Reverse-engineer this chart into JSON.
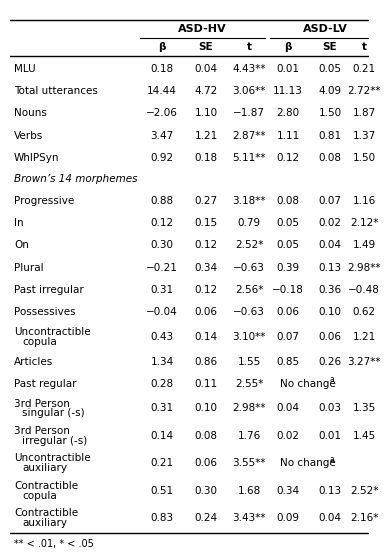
{
  "title_group1": "ASD-HV",
  "title_group2": "ASD-LV",
  "footnote": "** < .01, * < .05",
  "rows": [
    {
      "label": "MLU",
      "hv": [
        "0.18",
        "0.04",
        "4.43**"
      ],
      "lv": [
        "0.01",
        "0.05",
        "0.21"
      ],
      "two_line": false,
      "section_header": false
    },
    {
      "label": "Total utterances",
      "hv": [
        "14.44",
        "4.72",
        "3.06**"
      ],
      "lv": [
        "11.13",
        "4.09",
        "2.72**"
      ],
      "two_line": false,
      "section_header": false
    },
    {
      "label": "Nouns",
      "hv": [
        "−2.06",
        "1.10",
        "−1.87"
      ],
      "lv": [
        "2.80",
        "1.50",
        "1.87"
      ],
      "two_line": false,
      "section_header": false
    },
    {
      "label": "Verbs",
      "hv": [
        "3.47",
        "1.21",
        "2.87**"
      ],
      "lv": [
        "1.11",
        "0.81",
        "1.37"
      ],
      "two_line": false,
      "section_header": false
    },
    {
      "label": "WhIPSyn",
      "hv": [
        "0.92",
        "0.18",
        "5.11**"
      ],
      "lv": [
        "0.12",
        "0.08",
        "1.50"
      ],
      "two_line": false,
      "section_header": false
    },
    {
      "label": "Brown’s 14 morphemes",
      "hv": null,
      "lv": null,
      "two_line": false,
      "section_header": true
    },
    {
      "label": "Progressive",
      "hv": [
        "0.88",
        "0.27",
        "3.18**"
      ],
      "lv": [
        "0.08",
        "0.07",
        "1.16"
      ],
      "two_line": false,
      "section_header": false
    },
    {
      "label": "In",
      "hv": [
        "0.12",
        "0.15",
        "0.79"
      ],
      "lv": [
        "0.05",
        "0.02",
        "2.12*"
      ],
      "two_line": false,
      "section_header": false
    },
    {
      "label": "On",
      "hv": [
        "0.30",
        "0.12",
        "2.52*"
      ],
      "lv": [
        "0.05",
        "0.04",
        "1.49"
      ],
      "two_line": false,
      "section_header": false
    },
    {
      "label": "Plural",
      "hv": [
        "−0.21",
        "0.34",
        "−0.63"
      ],
      "lv": [
        "0.39",
        "0.13",
        "2.98**"
      ],
      "two_line": false,
      "section_header": false
    },
    {
      "label": "Past irregular",
      "hv": [
        "0.31",
        "0.12",
        "2.56*"
      ],
      "lv": [
        "−0.18",
        "0.36",
        "−0.48"
      ],
      "two_line": false,
      "section_header": false
    },
    {
      "label": "Possessives",
      "hv": [
        "−0.04",
        "0.06",
        "−0.63"
      ],
      "lv": [
        "0.06",
        "0.10",
        "0.62"
      ],
      "two_line": false,
      "section_header": false
    },
    {
      "label": "Uncontractible",
      "label2": "copula",
      "hv": [
        "0.43",
        "0.14",
        "3.10**"
      ],
      "lv": [
        "0.07",
        "0.06",
        "1.21"
      ],
      "two_line": true,
      "section_header": false
    },
    {
      "label": "Articles",
      "hv": [
        "1.34",
        "0.86",
        "1.55"
      ],
      "lv": [
        "0.85",
        "0.26",
        "3.27**"
      ],
      "two_line": false,
      "section_header": false
    },
    {
      "label": "Past regular",
      "hv": [
        "0.28",
        "0.11",
        "2.55*"
      ],
      "lv": null,
      "lv_nochange": true,
      "two_line": false,
      "section_header": false
    },
    {
      "label": "3rd Person",
      "label2": "singular (-s)",
      "hv": [
        "0.31",
        "0.10",
        "2.98**"
      ],
      "lv": [
        "0.04",
        "0.03",
        "1.35"
      ],
      "two_line": true,
      "section_header": false
    },
    {
      "label": "3rd Person",
      "label2": "irregular (-s)",
      "hv": [
        "0.14",
        "0.08",
        "1.76"
      ],
      "lv": [
        "0.02",
        "0.01",
        "1.45"
      ],
      "two_line": true,
      "section_header": false
    },
    {
      "label": "Uncontractible",
      "label2": "auxiliary",
      "hv": [
        "0.21",
        "0.06",
        "3.55**"
      ],
      "lv": null,
      "lv_nochange": true,
      "two_line": true,
      "section_header": false
    },
    {
      "label": "Contractible",
      "label2": "copula",
      "hv": [
        "0.51",
        "0.30",
        "1.68"
      ],
      "lv": [
        "0.34",
        "0.13",
        "2.52*"
      ],
      "two_line": true,
      "section_header": false
    },
    {
      "label": "Contractible",
      "label2": "auxiliary",
      "hv": [
        "0.83",
        "0.24",
        "3.43**"
      ],
      "lv": [
        "0.09",
        "0.04",
        "2.16*"
      ],
      "two_line": true,
      "section_header": false
    }
  ]
}
